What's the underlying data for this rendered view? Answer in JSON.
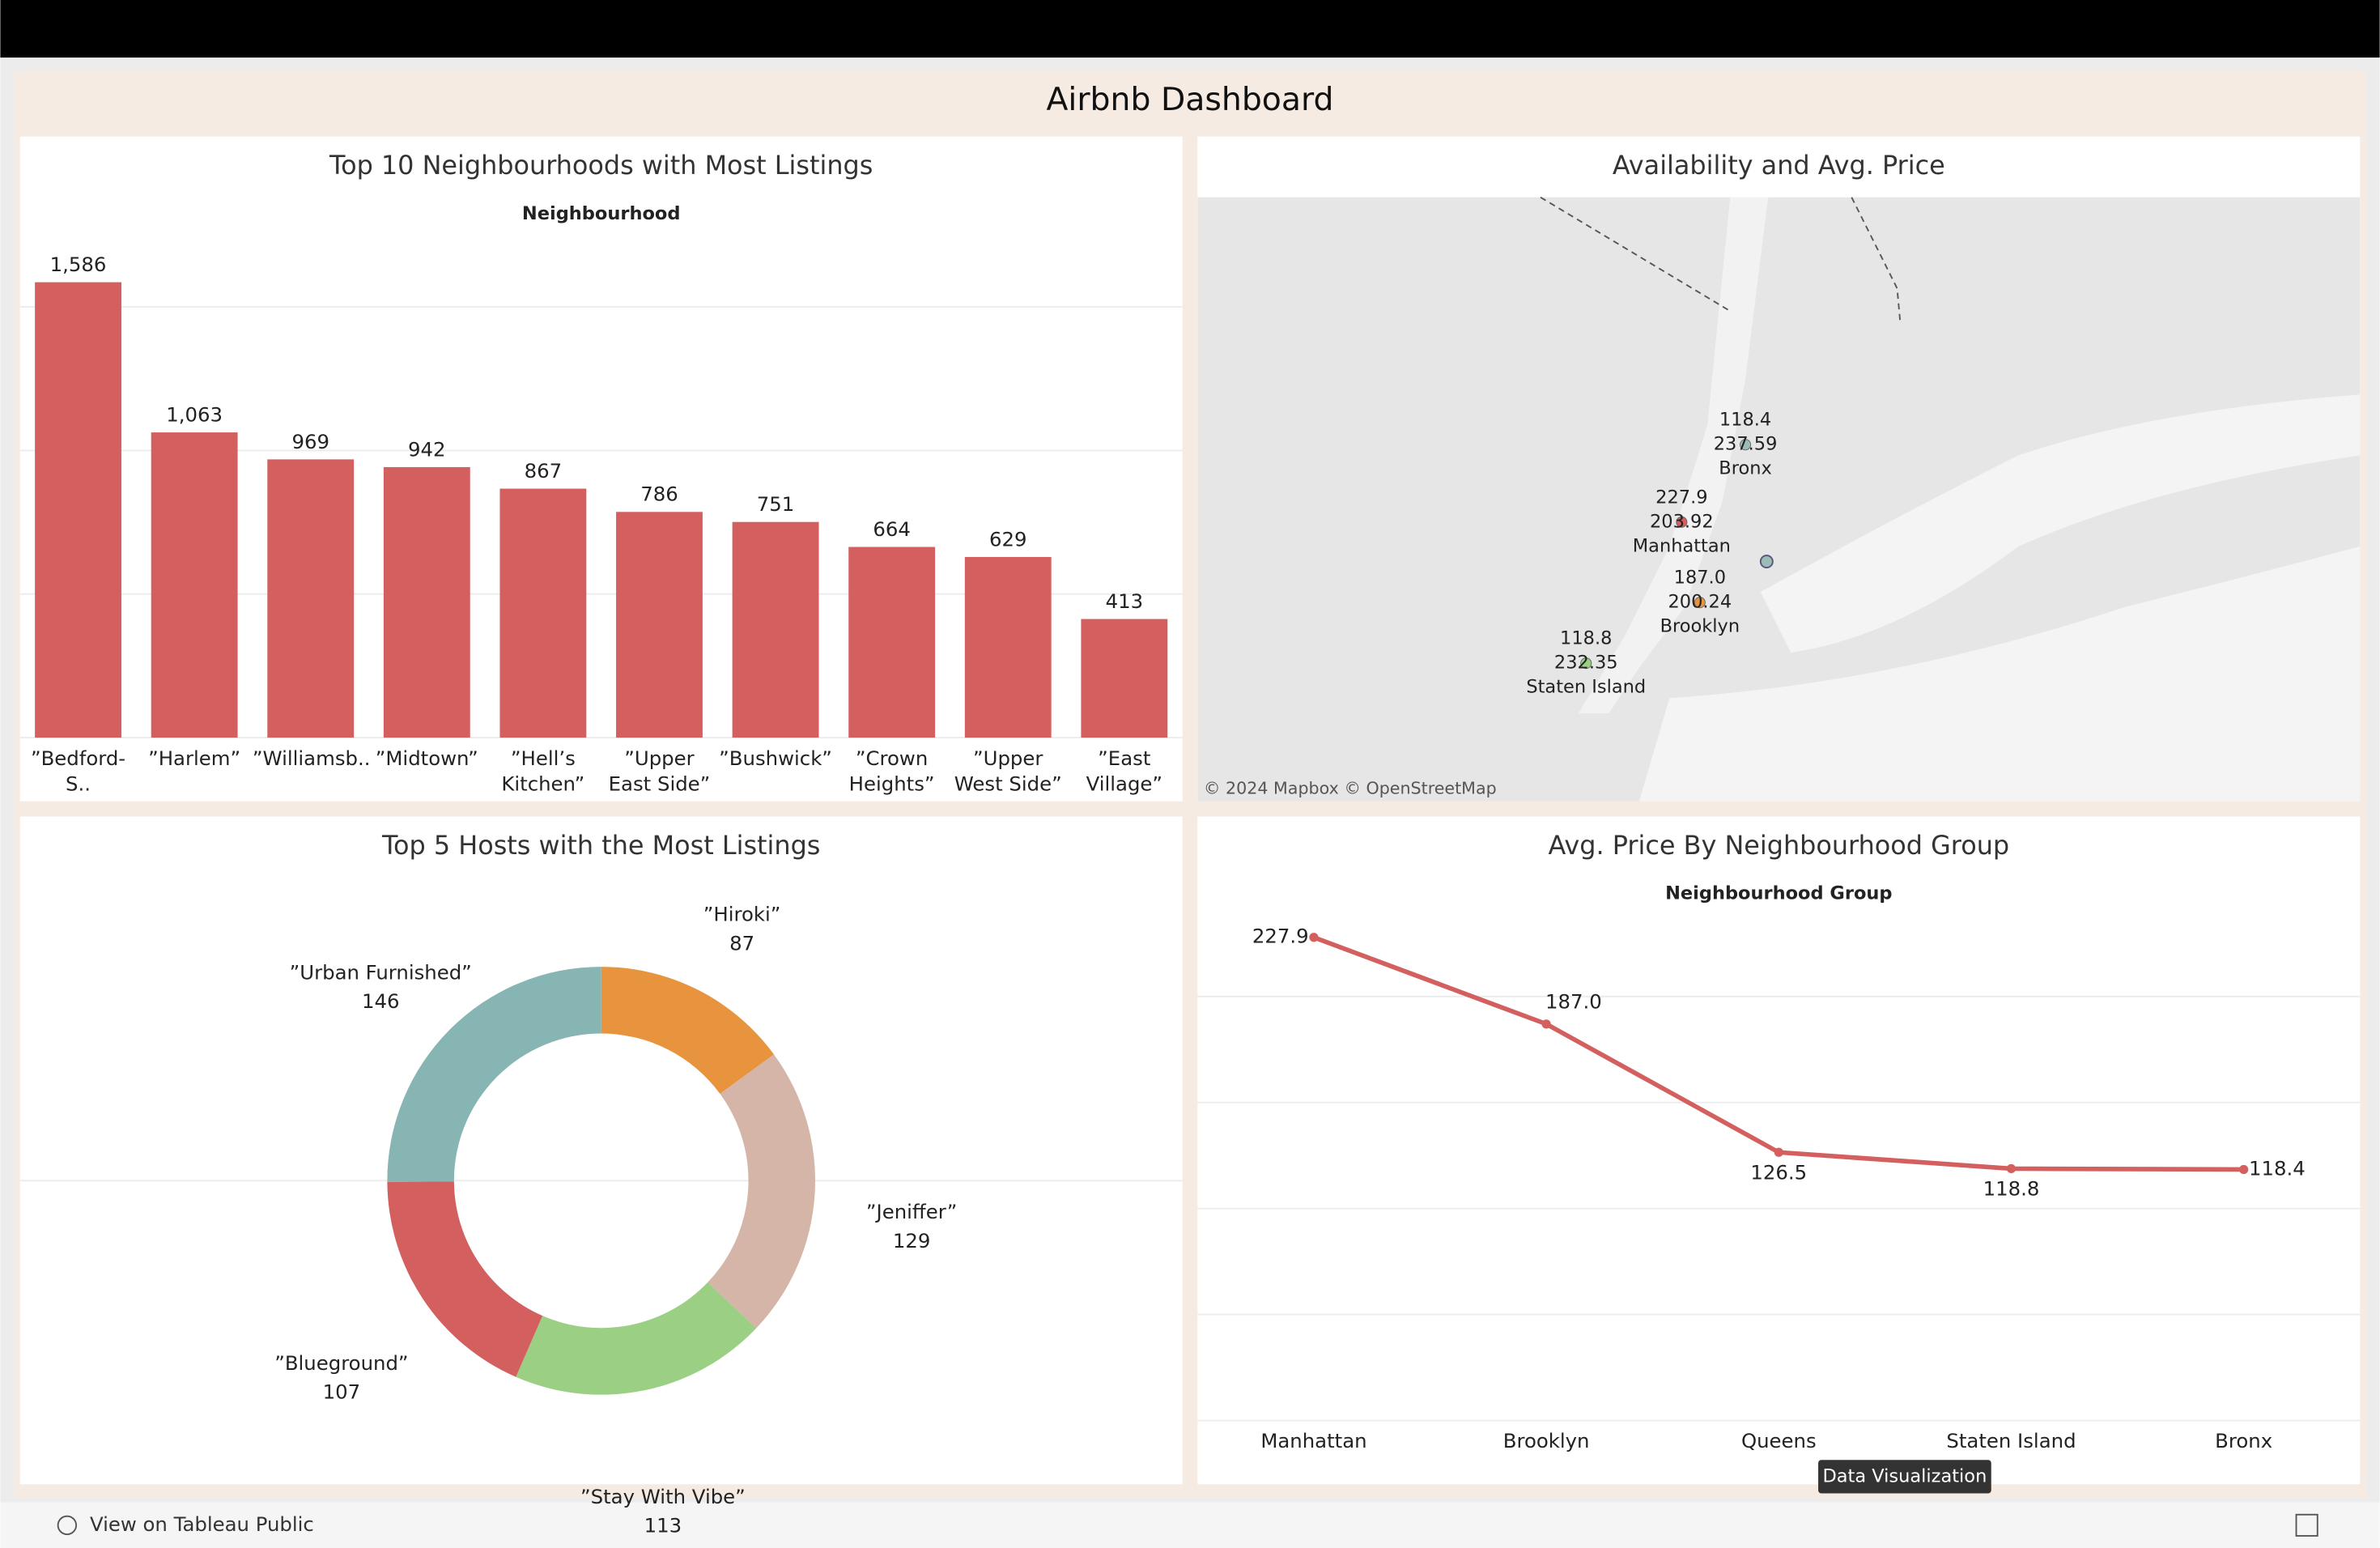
{
  "header": {
    "title": "Airbnb Dashboard"
  },
  "chart_data": [
    {
      "type": "bar",
      "title": "Top 10 Neighbourhoods with Most Listings",
      "x_label": "Neighbourhood",
      "categories": [
        "”Bedford-S..",
        "”Harlem”",
        "”Williamsb..",
        "”Midtown”",
        "”Hell’s Kitchen”",
        "”Upper East Side”",
        "”Bushwick”",
        "”Crown Heights”",
        "”Upper West Side”",
        "”East Village”"
      ],
      "values": [
        1586,
        1063,
        969,
        942,
        867,
        786,
        751,
        664,
        629,
        413
      ],
      "value_labels": [
        "1,586",
        "1,063",
        "969",
        "942",
        "867",
        "786",
        "751",
        "664",
        "629",
        "413"
      ],
      "color": "#d45f5f",
      "ylim": [
        0,
        1700
      ],
      "yticks": [
        0,
        500,
        1000,
        1500
      ],
      "grid": true
    },
    {
      "type": "map",
      "title": "Availability and Avg. Price",
      "attribution": "© 2024 Mapbox  © OpenStreetMap",
      "points": [
        {
          "name": "Bronx",
          "avg_price": 118.4,
          "availability": 237.59
        },
        {
          "name": "Manhattan",
          "avg_price": 227.9,
          "availability": 203.92
        },
        {
          "name": "Brooklyn",
          "avg_price": 187.0,
          "avg_price_label": "187.0",
          "availability": 200.24
        },
        {
          "name": "Staten Island",
          "avg_price": 118.8,
          "availability": 232.35
        }
      ]
    },
    {
      "type": "pie",
      "title": "Top 5 Hosts with the Most Listings",
      "donut": true,
      "categories": [
        "”Hiroki”",
        "”Jeniffer”",
        "”Stay With Vibe”",
        "”Blueground”",
        "”Urban Furnished”"
      ],
      "values": [
        87,
        129,
        113,
        107,
        146
      ],
      "colors": [
        "#e8943f",
        "#d4b5a8",
        "#9acf84",
        "#d45f5f",
        "#86b5b3"
      ]
    },
    {
      "type": "line",
      "title": "Avg. Price By Neighbourhood Group",
      "x_label": "Neighbourhood Group",
      "categories": [
        "Manhattan",
        "Brooklyn",
        "Queens",
        "Staten Island",
        "Bronx"
      ],
      "values": [
        227.9,
        187.0,
        126.5,
        118.8,
        118.4
      ],
      "value_labels": [
        "227.9",
        "187.0",
        "126.5",
        "118.8",
        "118.4"
      ],
      "color": "#d45f5f",
      "ylim": [
        0,
        250
      ],
      "yticks": [
        0,
        50,
        100,
        150,
        200
      ],
      "grid": true
    }
  ],
  "footer": {
    "link": "View on Tableau Public",
    "tooltip": "Data Visualization"
  }
}
